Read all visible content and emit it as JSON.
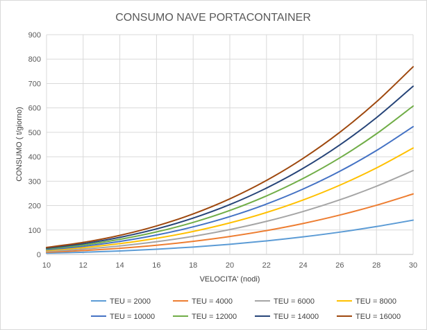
{
  "chart_data": {
    "type": "line",
    "title": "CONSUMO NAVE PORTACONTAINER",
    "xlabel": "VELOCITA' (nodi)",
    "ylabel": "CONSUMO ( t/giorno)",
    "xlim": [
      10,
      30
    ],
    "ylim": [
      0,
      900
    ],
    "xticks": [
      10,
      12,
      14,
      16,
      18,
      20,
      22,
      24,
      26,
      28,
      30
    ],
    "yticks": [
      0,
      100,
      200,
      300,
      400,
      500,
      600,
      700,
      800,
      900
    ],
    "grid": true,
    "legend_position": "bottom",
    "x": [
      10,
      12,
      14,
      16,
      18,
      20,
      22,
      24,
      26,
      28,
      30
    ],
    "series": [
      {
        "name": "TEU = 2000",
        "color": "#5b9bd5",
        "values": [
          5.2,
          9.0,
          14.3,
          21.3,
          30.3,
          41.6,
          55.4,
          71.9,
          91.4,
          114.2,
          140.4
        ]
      },
      {
        "name": "TEU = 4000",
        "color": "#ed7d31",
        "values": [
          9.2,
          15.8,
          25.2,
          37.6,
          53.5,
          73.4,
          97.7,
          126.8,
          161.3,
          201.4,
          247.7
        ]
      },
      {
        "name": "TEU = 6000",
        "color": "#a5a5a5",
        "values": [
          12.7,
          22.0,
          34.9,
          52.1,
          74.2,
          101.8,
          135.5,
          175.9,
          223.6,
          279.3,
          343.5
        ]
      },
      {
        "name": "TEU = 8000",
        "color": "#ffc000",
        "values": [
          16.1,
          27.9,
          44.3,
          66.1,
          94.1,
          129.1,
          171.8,
          223.1,
          283.6,
          354.2,
          435.7
        ]
      },
      {
        "name": "TEU = 10000",
        "color": "#4472c4",
        "values": [
          19.4,
          33.5,
          53.2,
          79.4,
          113.0,
          155.0,
          206.3,
          267.9,
          340.6,
          425.4,
          523.2
        ]
      },
      {
        "name": "TEU = 12000",
        "color": "#70ad47",
        "values": [
          22.5,
          38.9,
          61.8,
          92.2,
          131.2,
          180.0,
          239.6,
          311.1,
          395.5,
          494.0,
          607.6
        ]
      },
      {
        "name": "TEU = 14000",
        "color": "#264478",
        "values": [
          25.5,
          44.1,
          70.0,
          104.5,
          148.8,
          204.1,
          271.7,
          352.7,
          448.4,
          560.0,
          688.8
        ]
      },
      {
        "name": "TEU = 16000",
        "color": "#9e480e",
        "values": [
          28.5,
          49.2,
          78.1,
          116.6,
          166.0,
          227.7,
          303.1,
          393.5,
          500.3,
          624.8,
          768.5
        ]
      }
    ]
  }
}
